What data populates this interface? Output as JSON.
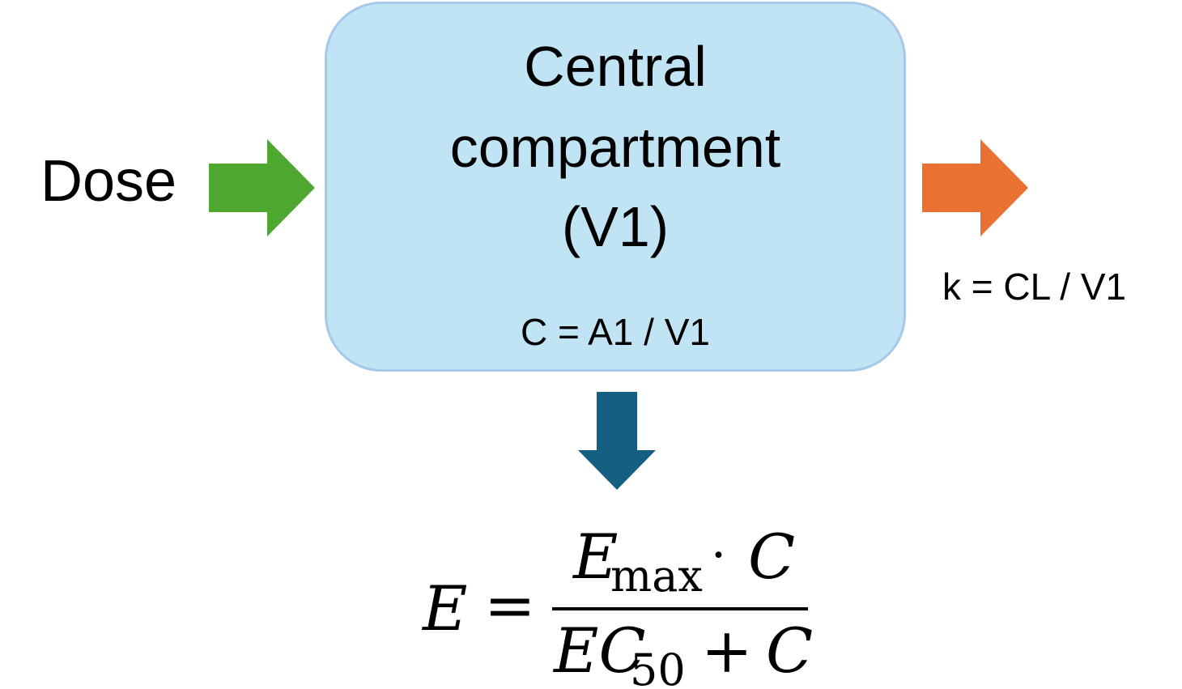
{
  "input": {
    "label": "Dose",
    "arrow_color": "#4ea72e"
  },
  "compartment": {
    "title_line1": "Central",
    "title_line2": "compartment",
    "title_line3": "(V1)",
    "concentration_eq": "C = A1 / V1",
    "fill_color": "#c1e4f5",
    "border_color": "#a7c8ea"
  },
  "elimination": {
    "rate_eq": "k = CL / V1",
    "arrow_color": "#e97132"
  },
  "effect": {
    "arrow_color": "#156082",
    "formula": {
      "lhs": "E",
      "equals": "=",
      "num_symbol": "E",
      "num_subscript": "max",
      "dot": "·",
      "num_var": "C",
      "den_symbol": "EC",
      "den_subscript": "50",
      "plus": "+",
      "den_var": "C"
    }
  }
}
